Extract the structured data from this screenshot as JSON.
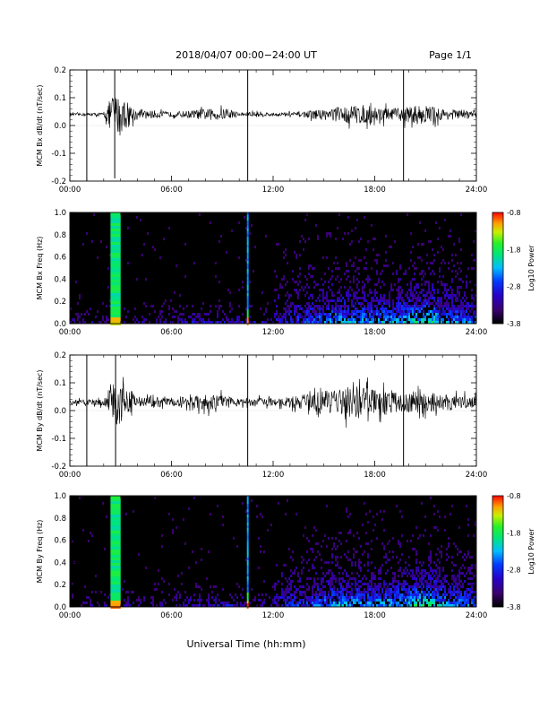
{
  "page": {
    "title": "2018/04/07  00:00−24:00 UT",
    "page_label": "Page 1/1",
    "xlabel": "Universal Time (hh:mm)"
  },
  "chart_data": [
    {
      "type": "line",
      "ylabel": "MCM Bx dB/dt (nT/sec)",
      "xlim": [
        0,
        24
      ],
      "ylim": [
        -0.2,
        0.2
      ],
      "x_ticks": [
        "00:00",
        "06:00",
        "12:00",
        "18:00",
        "24:00"
      ],
      "y_ticks": [
        "-0.2",
        "-0.1",
        "0.0",
        "0.1",
        "0.2"
      ],
      "baseline": 0.04,
      "noise_profile_hours": [
        0,
        2,
        2.5,
        3,
        4,
        5,
        6,
        8,
        9,
        10,
        11,
        12,
        13,
        14,
        15,
        16,
        17,
        18,
        19,
        20,
        21,
        22,
        23,
        24
      ],
      "noise_profile_amplitude": [
        0.004,
        0.006,
        0.07,
        0.07,
        0.012,
        0.015,
        0.008,
        0.02,
        0.02,
        0.008,
        0.01,
        0.006,
        0.008,
        0.012,
        0.02,
        0.03,
        0.035,
        0.03,
        0.02,
        0.03,
        0.035,
        0.02,
        0.018,
        0.015
      ],
      "events": [
        {
          "time": 1.0,
          "min": -0.2,
          "max": 0.2
        },
        {
          "time": 2.65,
          "min": -0.19,
          "max": 0.2
        },
        {
          "time": 10.5,
          "min": -0.2,
          "max": 0.2
        },
        {
          "time": 19.7,
          "min": -0.2,
          "max": 0.2
        }
      ]
    },
    {
      "type": "heatmap",
      "ylabel": "MCM Bx Freq (Hz)",
      "colorbar_label": "Log10 Power",
      "xlim": [
        0,
        24
      ],
      "ylim": [
        0.0,
        1.0
      ],
      "clim": [
        -3.8,
        -0.8
      ],
      "x_ticks": [
        "00:00",
        "06:00",
        "12:00",
        "18:00",
        "24:00"
      ],
      "y_ticks": [
        "0.0",
        "0.2",
        "0.4",
        "0.6",
        "0.8",
        "1.0"
      ],
      "colorbar_ticks": [
        "-3.8",
        "-2.8",
        "-1.8",
        "-0.8"
      ],
      "bands": [
        {
          "start": 2.4,
          "end": 3.0,
          "log_power": -1.9
        },
        {
          "start": 10.45,
          "end": 10.55,
          "log_power": -2.4
        }
      ]
    },
    {
      "type": "line",
      "ylabel": "MCM By dB/dt (nT/sec)",
      "xlim": [
        0,
        24
      ],
      "ylim": [
        -0.2,
        0.2
      ],
      "x_ticks": [
        "00:00",
        "06:00",
        "12:00",
        "18:00",
        "24:00"
      ],
      "y_ticks": [
        "-0.2",
        "-0.1",
        "0.0",
        "0.1",
        "0.2"
      ],
      "baseline": 0.03,
      "noise_profile_hours": [
        0,
        2,
        2.5,
        3,
        4,
        5,
        6,
        8,
        9,
        10,
        11,
        12,
        13,
        14,
        15,
        16,
        17,
        18,
        19,
        20,
        21,
        22,
        23,
        24
      ],
      "noise_profile_amplitude": [
        0.008,
        0.012,
        0.08,
        0.08,
        0.02,
        0.02,
        0.012,
        0.03,
        0.025,
        0.012,
        0.015,
        0.012,
        0.02,
        0.03,
        0.04,
        0.05,
        0.06,
        0.045,
        0.035,
        0.04,
        0.035,
        0.03,
        0.025,
        0.02
      ],
      "events": [
        {
          "time": 1.0,
          "min": -0.2,
          "max": 0.2
        },
        {
          "time": 2.7,
          "min": -0.2,
          "max": 0.2
        },
        {
          "time": 10.5,
          "min": -0.2,
          "max": 0.2
        },
        {
          "time": 19.7,
          "min": -0.2,
          "max": 0.2
        }
      ]
    },
    {
      "type": "heatmap",
      "ylabel": "MCM By Freq (Hz)",
      "colorbar_label": "Log10 Power",
      "xlim": [
        0,
        24
      ],
      "ylim": [
        0.0,
        1.0
      ],
      "clim": [
        -3.8,
        -0.8
      ],
      "x_ticks": [
        "00:00",
        "06:00",
        "12:00",
        "18:00",
        "24:00"
      ],
      "y_ticks": [
        "0.0",
        "0.2",
        "0.4",
        "0.6",
        "0.8",
        "1.0"
      ],
      "colorbar_ticks": [
        "-3.8",
        "-2.8",
        "-1.8",
        "-0.8"
      ],
      "bands": [
        {
          "start": 2.4,
          "end": 3.0,
          "log_power": -1.9
        },
        {
          "start": 10.45,
          "end": 10.55,
          "log_power": -2.4
        }
      ]
    }
  ]
}
